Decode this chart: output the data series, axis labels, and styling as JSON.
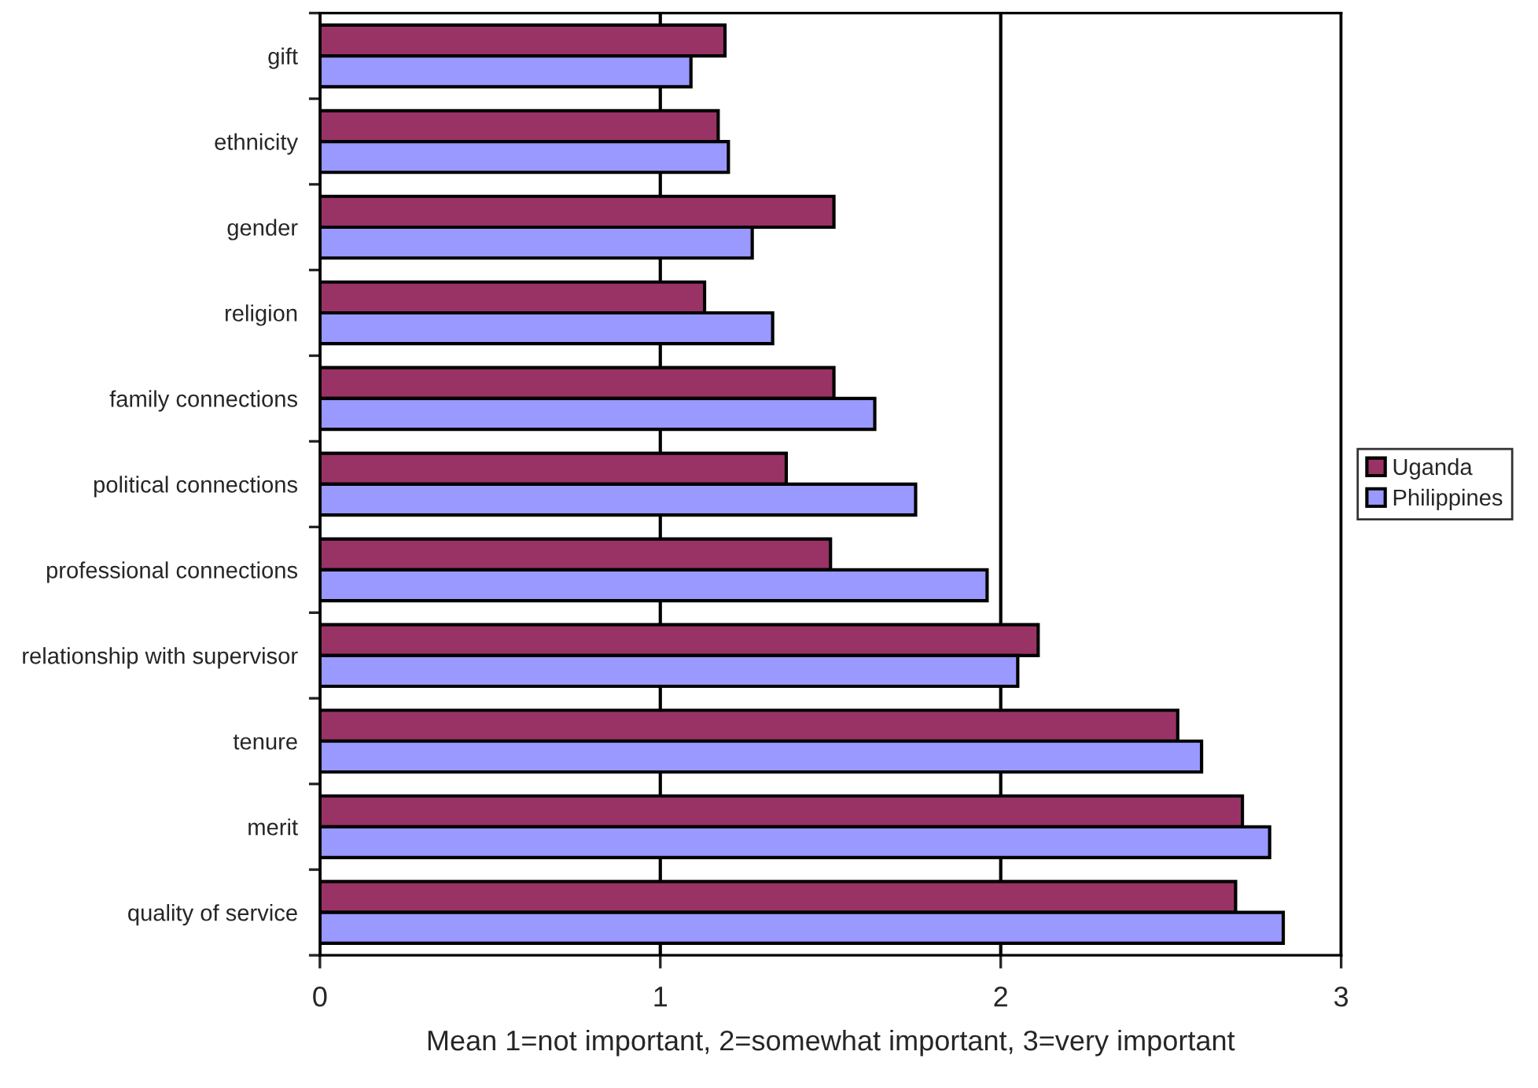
{
  "chart_data": {
    "type": "bar",
    "orientation": "horizontal",
    "xlabel": "Mean 1=not important, 2=somewhat important, 3=very important",
    "categories": [
      "gift",
      "ethnicity",
      "gender",
      "religion",
      "family connections",
      "political connections",
      "professional connections",
      "relationship with supervisor",
      "tenure",
      "merit",
      "quality of service"
    ],
    "series": [
      {
        "name": "Uganda",
        "color": "#993366",
        "values": [
          1.19,
          1.17,
          1.51,
          1.13,
          1.51,
          1.37,
          1.5,
          2.11,
          2.52,
          2.71,
          2.69
        ]
      },
      {
        "name": "Philippines",
        "color": "#9999ff",
        "values": [
          1.09,
          1.2,
          1.27,
          1.33,
          1.63,
          1.75,
          1.96,
          2.05,
          2.59,
          2.79,
          2.83
        ]
      }
    ],
    "xlim": [
      0,
      3
    ],
    "xticks": [
      0,
      1,
      2,
      3
    ],
    "grid": "x",
    "legend": "right"
  }
}
